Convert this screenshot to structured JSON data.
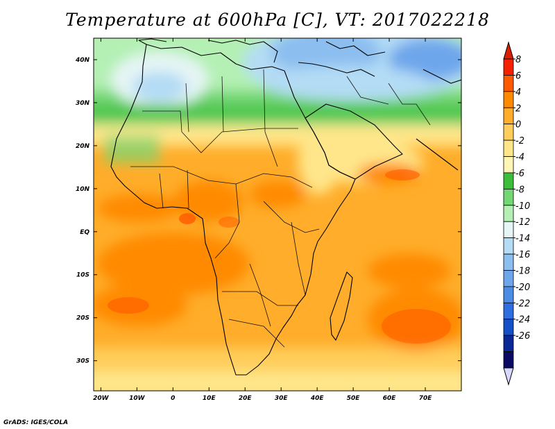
{
  "title": "Temperature at 600hPa [C], VT: 2017022218",
  "footer": "GrADS: IGES/COLA",
  "map": {
    "lon_range": [
      -22,
      80
    ],
    "lat_range": [
      -37,
      45
    ],
    "lon_ticks": [
      {
        "value": -20,
        "label": "20W"
      },
      {
        "value": -10,
        "label": "10W"
      },
      {
        "value": 0,
        "label": "0"
      },
      {
        "value": 10,
        "label": "10E"
      },
      {
        "value": 20,
        "label": "20E"
      },
      {
        "value": 30,
        "label": "30E"
      },
      {
        "value": 40,
        "label": "40E"
      },
      {
        "value": 50,
        "label": "50E"
      },
      {
        "value": 60,
        "label": "60E"
      },
      {
        "value": 70,
        "label": "70E"
      }
    ],
    "lat_ticks": [
      {
        "value": 40,
        "label": "40N"
      },
      {
        "value": 30,
        "label": "30N"
      },
      {
        "value": 20,
        "label": "20N"
      },
      {
        "value": 10,
        "label": "10N"
      },
      {
        "value": 0,
        "label": "EQ"
      },
      {
        "value": -10,
        "label": "10S"
      },
      {
        "value": -20,
        "label": "20S"
      },
      {
        "value": -30,
        "label": "30S"
      }
    ]
  },
  "colorbar": {
    "labels": [
      "8",
      "6",
      "4",
      "2",
      "0",
      "-2",
      "-4",
      "-6",
      "-8",
      "-10",
      "-12",
      "-14",
      "-16",
      "-18",
      "-20",
      "-22",
      "-24",
      "-26"
    ],
    "colors": [
      "#f52000",
      "#ff5a00",
      "#ff8a00",
      "#ffad2a",
      "#ffcd5a",
      "#ffe68a",
      "#fff5b4",
      "#3cbe3c",
      "#73d773",
      "#b4f0b4",
      "#e6f5f5",
      "#b4dcf5",
      "#8cbef0",
      "#6ea6eb",
      "#4b8ce6",
      "#2d6ee1",
      "#1450c8",
      "#0a2896",
      "#0a0a64"
    ],
    "top_color": "#dc1e00",
    "bottom_color": "#d7d7ff"
  }
}
